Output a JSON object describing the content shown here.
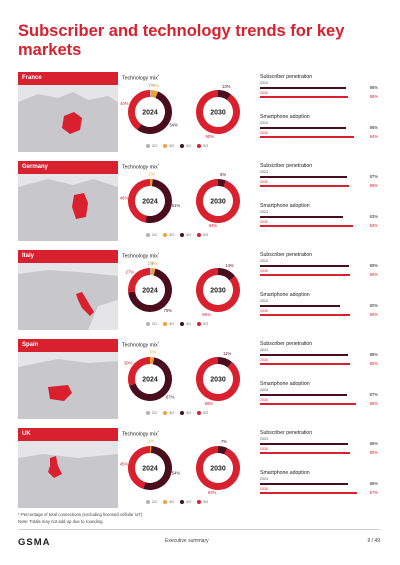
{
  "page": {
    "title": "Subscriber and technology trends for key markets",
    "footnote1": "* Percentage of total connections (excluding licensed cellular IoT)",
    "footnote2": "Note: Totals may not add up due to rounding.",
    "footer_logo": "GSMA",
    "footer_section": "Executive summary",
    "footer_page": "9 / 49"
  },
  "labels": {
    "technology_mix": "Technology mix",
    "technology_mix_mark": "*",
    "subscriber_penetration": "Subscriber penetration",
    "smartphone_adoption": "Smartphone adoption",
    "year_2024": "2024",
    "year_2030": "2030",
    "legend": [
      "2G",
      "3G",
      "4G",
      "5G"
    ]
  },
  "colors": {
    "brand_red": "#d8202f",
    "2G": "#b3b3b3",
    "3G": "#f0a030",
    "4G": "#4a0d1e",
    "5G": "#d8202f",
    "bar_2024": "#4a0d1e",
    "bar_2030": "#d8202f",
    "map_bg": "#e5e5e8",
    "map_land": "#c8c8cc"
  },
  "chart_data": [
    {
      "type": "pie",
      "country": "France",
      "mix_2024": {
        "2G": 1,
        "3G": 5,
        "4G": 54,
        "5G": 40
      },
      "mix_2024_labels": {
        "2G": "1%",
        "3G": "5%",
        "4G": "54%",
        "5G": "40%"
      },
      "mix_2030": {
        "4G": 10,
        "5G": 90
      },
      "mix_2030_labels": {
        "4G": "10%",
        "5G": "90%"
      },
      "subscriber_penetration": {
        "2024": 86,
        "2030": 88
      },
      "subscriber_penetration_labels": {
        "2024": "86%",
        "2030": "88%"
      },
      "smartphone_adoption": {
        "2024": 86,
        "2030": 94
      },
      "smartphone_adoption_labels": {
        "2024": "86%",
        "2030": "94%"
      }
    },
    {
      "type": "pie",
      "country": "Germany",
      "mix_2024": {
        "3G": 2,
        "4G": 51,
        "5G": 46
      },
      "mix_2024_labels": {
        "3G": "2%",
        "4G": "51%",
        "5G": "46%"
      },
      "mix_2030": {
        "4G": 6,
        "5G": 94
      },
      "mix_2030_labels": {
        "4G": "6%",
        "5G": "94%"
      },
      "subscriber_penetration": {
        "2024": 87,
        "2030": 89
      },
      "subscriber_penetration_labels": {
        "2024": "87%",
        "2030": "89%"
      },
      "smartphone_adoption": {
        "2024": 83,
        "2030": 93
      },
      "smartphone_adoption_labels": {
        "2024": "83%",
        "2030": "93%"
      }
    },
    {
      "type": "pie",
      "country": "Italy",
      "mix_2024": {
        "2G": 1,
        "3G": 3,
        "4G": 70,
        "5G": 27
      },
      "mix_2024_labels": {
        "2G": "1%",
        "3G": "3%",
        "4G": "70%",
        "5G": "27%"
      },
      "mix_2030": {
        "4G": 14,
        "5G": 86
      },
      "mix_2030_labels": {
        "4G": "14%",
        "5G": "86%"
      },
      "subscriber_penetration": {
        "2024": 89,
        "2030": 90
      },
      "subscriber_penetration_labels": {
        "2024": "89%",
        "2030": "90%"
      },
      "smartphone_adoption": {
        "2024": 80,
        "2030": 90
      },
      "smartphone_adoption_labels": {
        "2024": "80%",
        "2030": "90%"
      }
    },
    {
      "type": "pie",
      "country": "Spain",
      "mix_2024": {
        "3G": 3,
        "4G": 67,
        "5G": 30
      },
      "mix_2024_labels": {
        "3G": "3%",
        "4G": "67%",
        "5G": "30%"
      },
      "mix_2030": {
        "4G": 11,
        "5G": 89
      },
      "mix_2030_labels": {
        "4G": "11%",
        "5G": "89%"
      },
      "subscriber_penetration": {
        "2024": 88,
        "2030": 90
      },
      "subscriber_penetration_labels": {
        "2024": "88%",
        "2030": "90%"
      },
      "smartphone_adoption": {
        "2024": 87,
        "2030": 96
      },
      "smartphone_adoption_labels": {
        "2024": "87%",
        "2030": "96%"
      }
    },
    {
      "type": "pie",
      "country": "UK",
      "mix_2024": {
        "3G": 1,
        "4G": 54,
        "5G": 45
      },
      "mix_2024_labels": {
        "3G": "1%",
        "4G": "54%",
        "5G": "45%"
      },
      "mix_2030": {
        "4G": 7,
        "5G": 93
      },
      "mix_2030_labels": {
        "4G": "7%",
        "5G": "93%"
      },
      "subscriber_penetration": {
        "2024": 88,
        "2030": 90
      },
      "subscriber_penetration_labels": {
        "2024": "88%",
        "2030": "90%"
      },
      "smartphone_adoption": {
        "2024": 88,
        "2030": 97
      },
      "smartphone_adoption_labels": {
        "2024": "88%",
        "2030": "97%"
      }
    }
  ]
}
